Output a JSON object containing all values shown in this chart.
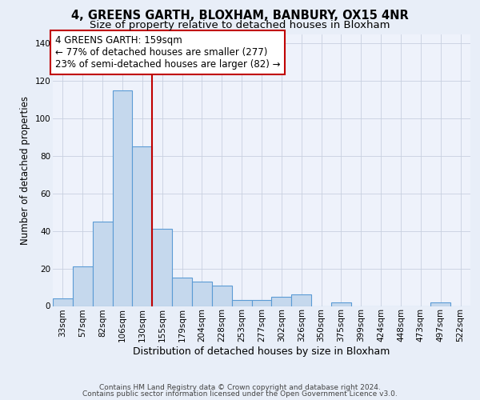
{
  "title": "4, GREENS GARTH, BLOXHAM, BANBURY, OX15 4NR",
  "subtitle": "Size of property relative to detached houses in Bloxham",
  "xlabel": "Distribution of detached houses by size in Bloxham",
  "ylabel": "Number of detached properties",
  "bar_labels": [
    "33sqm",
    "57sqm",
    "82sqm",
    "106sqm",
    "130sqm",
    "155sqm",
    "179sqm",
    "204sqm",
    "228sqm",
    "253sqm",
    "277sqm",
    "302sqm",
    "326sqm",
    "350sqm",
    "375sqm",
    "399sqm",
    "424sqm",
    "448sqm",
    "473sqm",
    "497sqm",
    "522sqm"
  ],
  "bar_values": [
    4,
    21,
    45,
    115,
    85,
    41,
    15,
    13,
    11,
    3,
    3,
    5,
    6,
    0,
    2,
    0,
    0,
    0,
    0,
    2,
    0
  ],
  "bar_color": "#c5d8ed",
  "bar_edge_color": "#5b9bd5",
  "vline_x": 4.5,
  "vline_color": "#c00000",
  "ylim": [
    0,
    145
  ],
  "yticks": [
    0,
    20,
    40,
    60,
    80,
    100,
    120,
    140
  ],
  "annotation_line1": "4 GREENS GARTH: 159sqm",
  "annotation_line2": "← 77% of detached houses are smaller (277)",
  "annotation_line3": "23% of semi-detached houses are larger (82) →",
  "annotation_box_color": "#ffffff",
  "annotation_box_edge": "#c00000",
  "footer1": "Contains HM Land Registry data © Crown copyright and database right 2024.",
  "footer2": "Contains public sector information licensed under the Open Government Licence v3.0.",
  "background_color": "#e8eef8",
  "plot_bg_color": "#eef2fb",
  "grid_color": "#c8d0e0",
  "title_fontsize": 10.5,
  "subtitle_fontsize": 9.5,
  "ylabel_fontsize": 8.5,
  "xlabel_fontsize": 9,
  "tick_fontsize": 7.5,
  "annotation_fontsize": 8.5,
  "footer_fontsize": 6.5
}
